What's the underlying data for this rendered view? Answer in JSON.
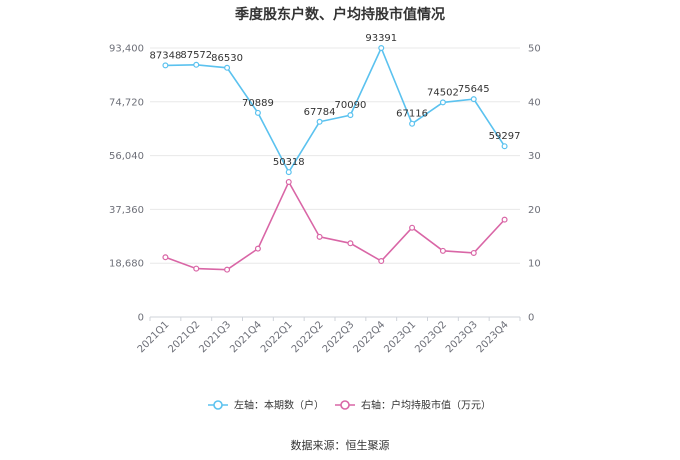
{
  "chart_data": {
    "type": "line",
    "title": "季度股东户数、户均持股市值情况",
    "categories": [
      "2021Q1",
      "2021Q2",
      "2021Q3",
      "2021Q4",
      "2022Q1",
      "2022Q2",
      "2022Q3",
      "2022Q4",
      "2023Q1",
      "2023Q2",
      "2023Q3",
      "2023Q4"
    ],
    "series": [
      {
        "name": "左轴：本期数（户）",
        "axis": "left",
        "color": "#5bc2ef",
        "values": [
          87348,
          87572,
          86530,
          70889,
          50318,
          67784,
          70090,
          93391,
          67116,
          74502,
          75645,
          59297
        ]
      },
      {
        "name": "右轴：户均持股市值（万元）",
        "axis": "right",
        "color": "#d966a6",
        "values": [
          11.1,
          9.0,
          8.8,
          12.7,
          25.1,
          14.9,
          13.7,
          10.4,
          16.6,
          12.3,
          11.9,
          18.1
        ]
      }
    ],
    "y_left": {
      "min": 0,
      "max": 93400,
      "ticks": [
        "0",
        "18,680",
        "37,360",
        "56,040",
        "74,720",
        "93,400"
      ]
    },
    "y_right": {
      "min": 0,
      "max": 50,
      "ticks": [
        "0",
        "10",
        "20",
        "30",
        "40",
        "50"
      ]
    },
    "grid": true,
    "legend_position": "bottom"
  },
  "source_text": "数据来源：恒生聚源"
}
